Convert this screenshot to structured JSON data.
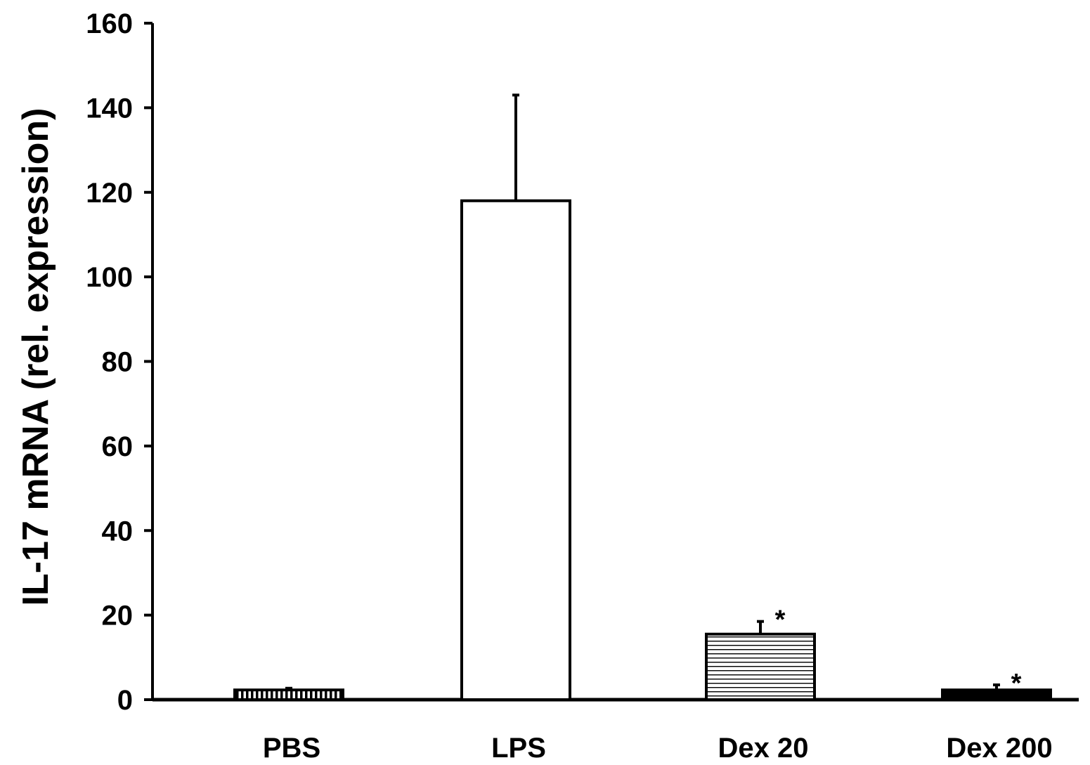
{
  "chart_data": {
    "type": "bar",
    "title": "",
    "xlabel": "",
    "ylabel": "IL-17 mRNA (rel. expression)",
    "ylim": [
      0,
      160
    ],
    "yticks": [
      0,
      20,
      40,
      60,
      80,
      100,
      120,
      140,
      160
    ],
    "grid": false,
    "categories": [
      "PBS",
      "LPS",
      "Dex 20",
      "Dex 200"
    ],
    "values": [
      2.3,
      118,
      15.5,
      2.3
    ],
    "errors": [
      0.4,
      25,
      3,
      1.2
    ],
    "patterns": [
      "vertical-hatch",
      "white",
      "horizontal-hatch",
      "black"
    ],
    "annotations": [
      "",
      "",
      "*",
      "*"
    ],
    "colors": {
      "stroke": "#000000",
      "fill_white": "#ffffff",
      "fill_black": "#000000"
    }
  }
}
